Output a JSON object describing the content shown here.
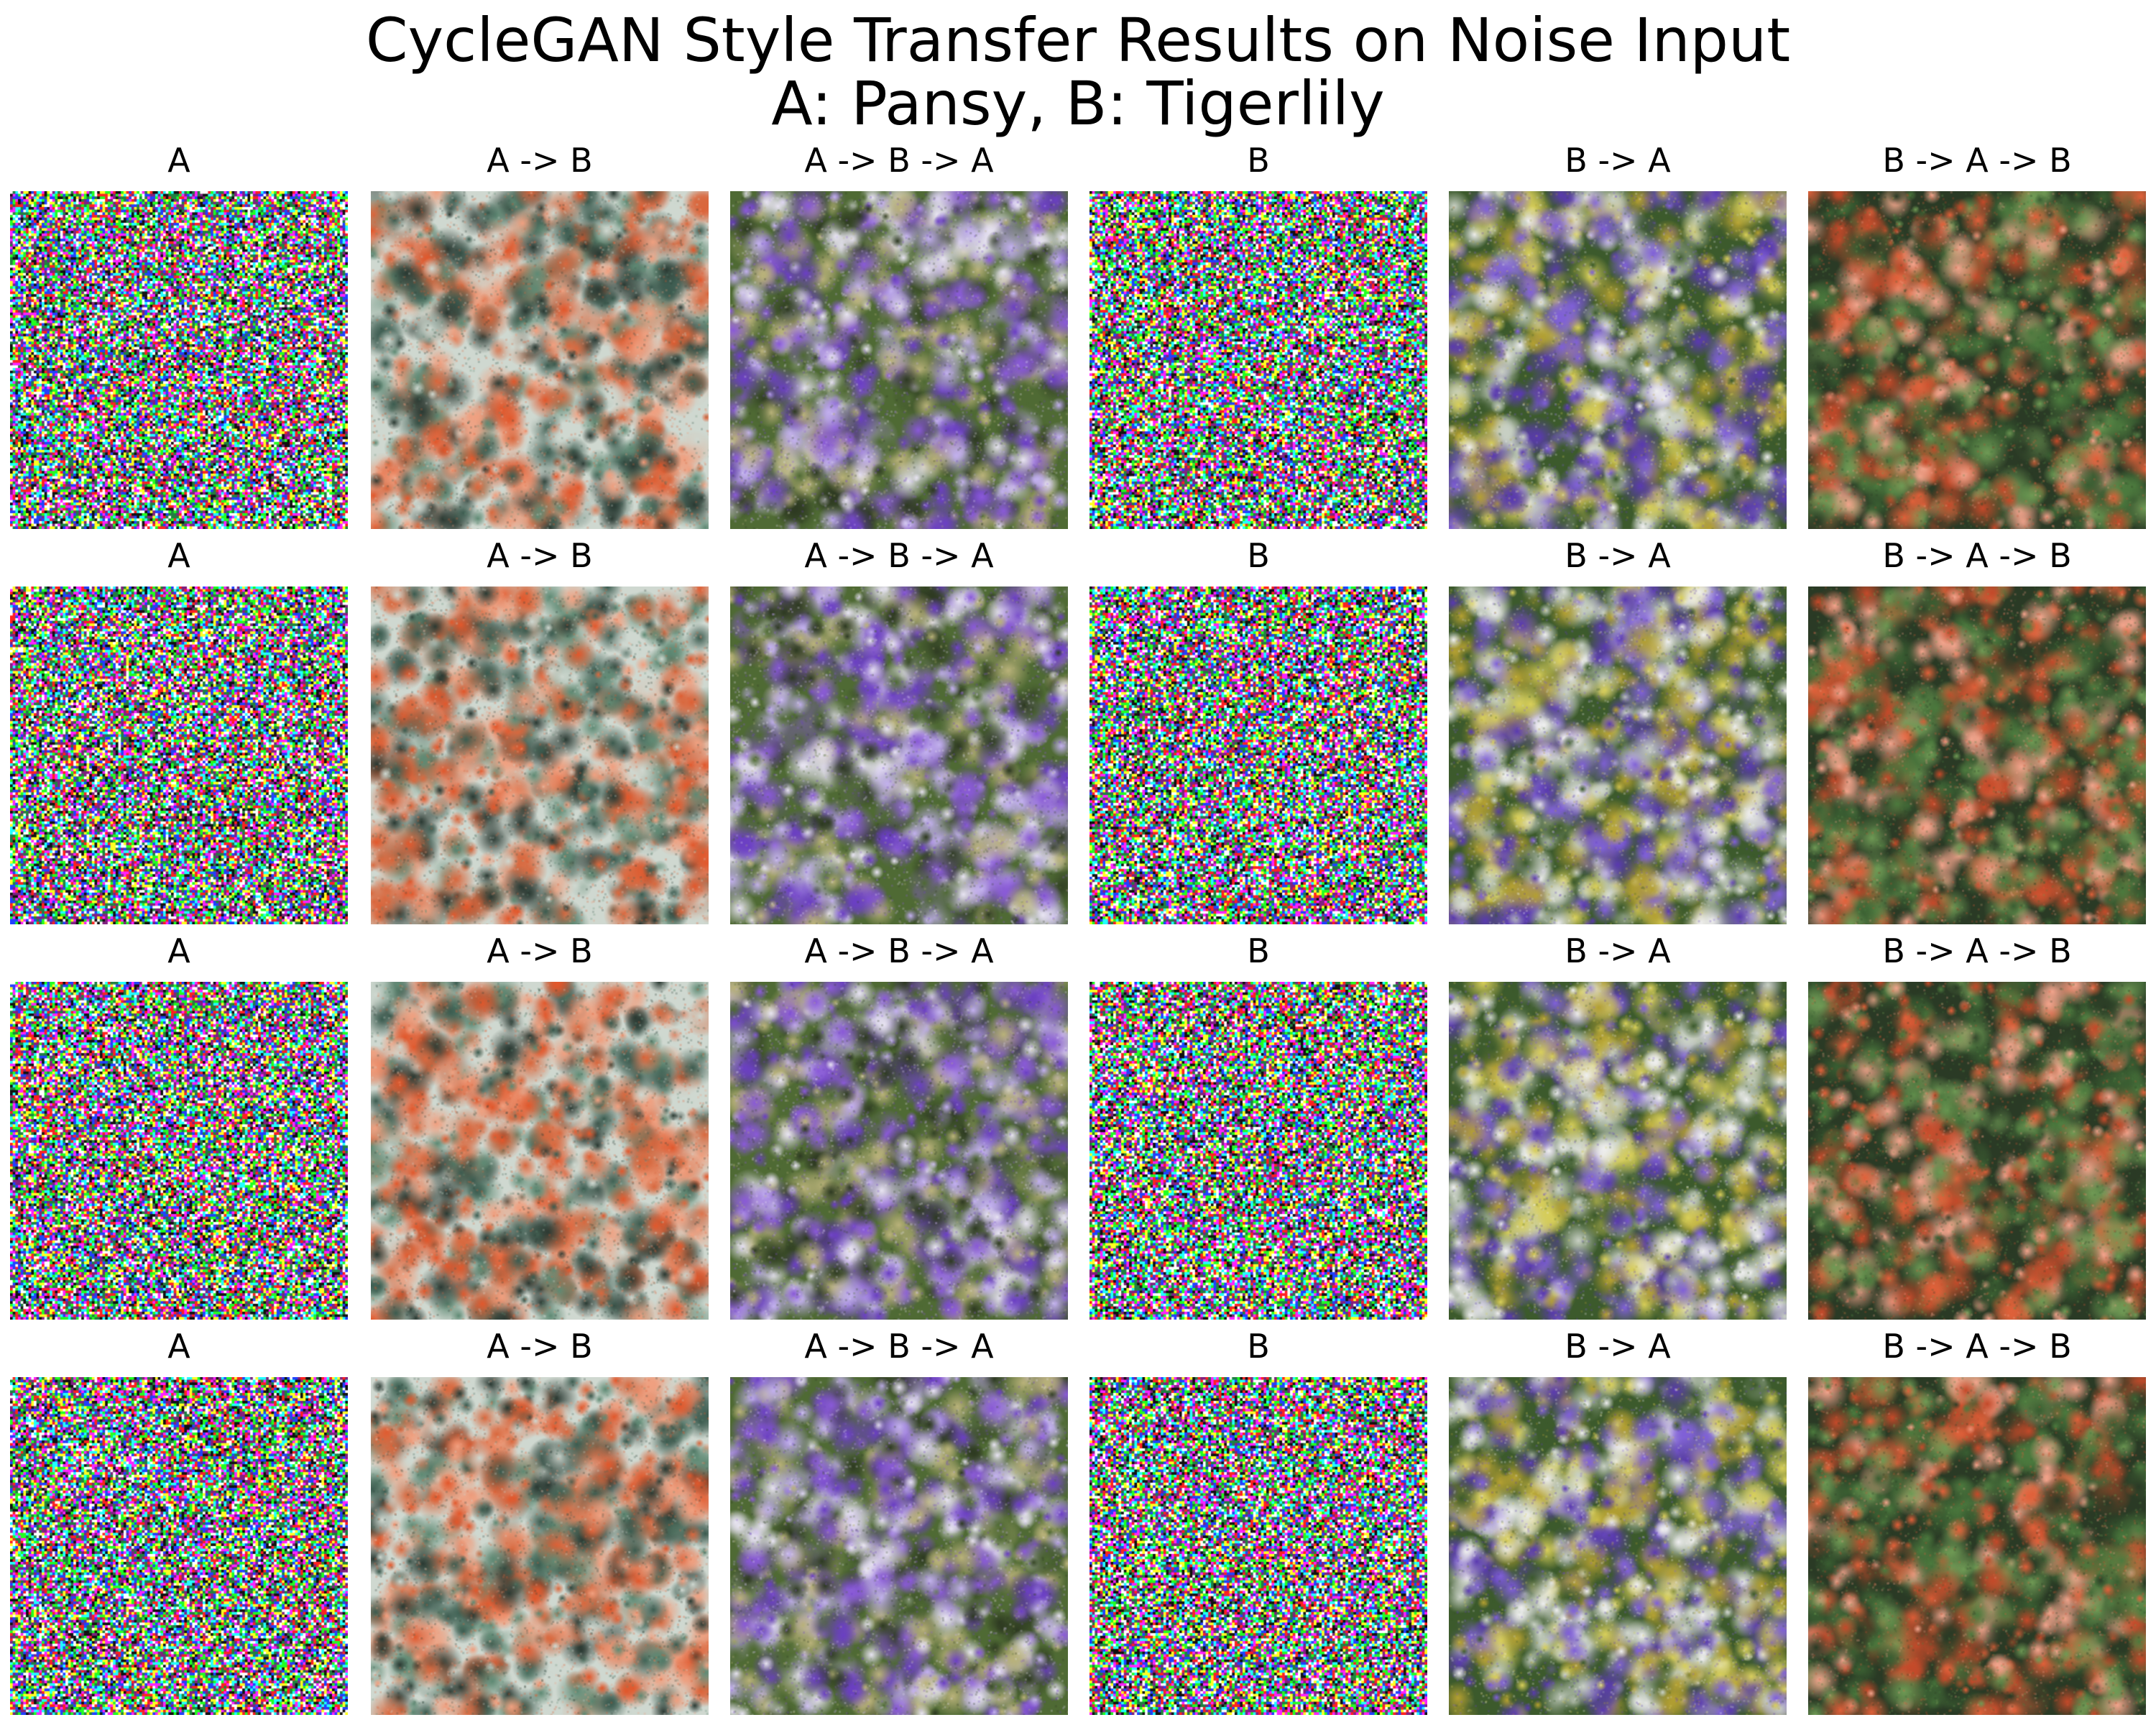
{
  "figure": {
    "title_line1": "CycleGAN Style Transfer Results on Noise Input",
    "title_line2": "A: Pansy, B: Tigerlily"
  },
  "columns": [
    {
      "label": "A",
      "kind": "noise"
    },
    {
      "label": "A -> B",
      "kind": "tigerlily"
    },
    {
      "label": "A -> B -> A",
      "kind": "pansy"
    },
    {
      "label": "B",
      "kind": "noise"
    },
    {
      "label": "B -> A",
      "kind": "pansy-yellow"
    },
    {
      "label": "B -> A -> B",
      "kind": "tigerlily-green"
    }
  ],
  "rows": 4,
  "palettes": {
    "noise": [
      "#ff2020",
      "#20ff20",
      "#2040ff",
      "#ffff20",
      "#ff20ff",
      "#20ffff",
      "#ffffff",
      "#101010",
      "#802080",
      "#208040"
    ],
    "tigerlily": [
      "#e2582c",
      "#f0a080",
      "#5f8a74",
      "#3c5c50",
      "#cfd8d0",
      "#2b3a33",
      "#d9693f"
    ],
    "tigerlily-green": [
      "#e0613a",
      "#4c7a3e",
      "#3a5e32",
      "#f2a48c",
      "#2a3a25",
      "#c44a2a",
      "#6f9a55"
    ],
    "pansy": [
      "#8a5ad8",
      "#6b3fc4",
      "#c2b0ee",
      "#e8e4f2",
      "#4f6a34",
      "#b9b27a",
      "#2e3a22"
    ],
    "pansy-yellow": [
      "#8060d8",
      "#5a3ab0",
      "#d8cf5a",
      "#c8d0c4",
      "#3c5a2c",
      "#efefef",
      "#b4a032"
    ]
  }
}
